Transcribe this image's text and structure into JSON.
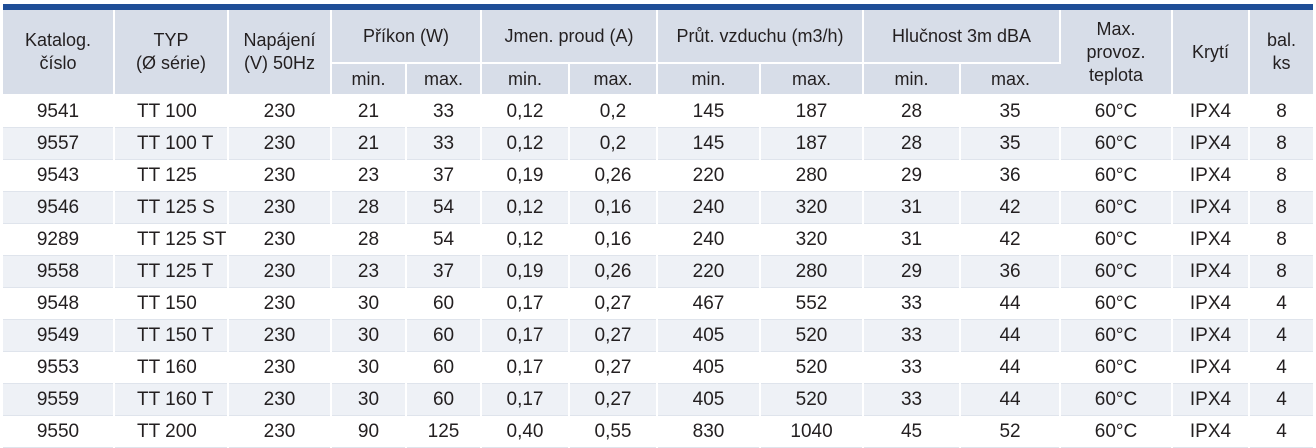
{
  "header": {
    "katalog": "Katalog. číslo",
    "katalog_l1": "Katalog.",
    "katalog_l2": "číslo",
    "typ_l1": "TYP",
    "typ_l2": "(Ø série)",
    "napajeni_l1": "Napájení",
    "napajeni_l2": "(V) 50Hz",
    "prikon": "Příkon (W)",
    "proud": "Jmen. proud (A)",
    "vzduch": "Průt. vzduchu (m3/h)",
    "hlucnost": "Hlučnost 3m dBA",
    "max_l1": "Max.",
    "max_l2": "provoz.",
    "max_l3": "teplota",
    "kryti": "Krytí",
    "bal_l1": "bal.",
    "bal_l2": "ks",
    "min": "min.",
    "max": "max."
  },
  "rows": [
    {
      "cislo": "9541",
      "typ": "TT 100",
      "napajeni": "230",
      "prikon_min": "21",
      "prikon_max": "33",
      "proud_min": "0,12",
      "proud_max": "0,2",
      "vzduch_min": "145",
      "vzduch_max": "187",
      "hluk_min": "28",
      "hluk_max": "35",
      "teplota": "60°C",
      "kryti": "IPX4",
      "bal": "8"
    },
    {
      "cislo": "9557",
      "typ": "TT 100 T",
      "napajeni": "230",
      "prikon_min": "21",
      "prikon_max": "33",
      "proud_min": "0,12",
      "proud_max": "0,2",
      "vzduch_min": "145",
      "vzduch_max": "187",
      "hluk_min": "28",
      "hluk_max": "35",
      "teplota": "60°C",
      "kryti": "IPX4",
      "bal": "8"
    },
    {
      "cislo": "9543",
      "typ": "TT 125",
      "napajeni": "230",
      "prikon_min": "23",
      "prikon_max": "37",
      "proud_min": "0,19",
      "proud_max": "0,26",
      "vzduch_min": "220",
      "vzduch_max": "280",
      "hluk_min": "29",
      "hluk_max": "36",
      "teplota": "60°C",
      "kryti": "IPX4",
      "bal": "8"
    },
    {
      "cislo": "9546",
      "typ": "TT 125 S",
      "napajeni": "230",
      "prikon_min": "28",
      "prikon_max": "54",
      "proud_min": "0,12",
      "proud_max": "0,16",
      "vzduch_min": "240",
      "vzduch_max": "320",
      "hluk_min": "31",
      "hluk_max": "42",
      "teplota": "60°C",
      "kryti": "IPX4",
      "bal": "8"
    },
    {
      "cislo": "9289",
      "typ": "TT 125 ST",
      "napajeni": "230",
      "prikon_min": "28",
      "prikon_max": "54",
      "proud_min": "0,12",
      "proud_max": "0,16",
      "vzduch_min": "240",
      "vzduch_max": "320",
      "hluk_min": "31",
      "hluk_max": "42",
      "teplota": "60°C",
      "kryti": "IPX4",
      "bal": "8"
    },
    {
      "cislo": "9558",
      "typ": "TT 125 T",
      "napajeni": "230",
      "prikon_min": "23",
      "prikon_max": "37",
      "proud_min": "0,19",
      "proud_max": "0,26",
      "vzduch_min": "220",
      "vzduch_max": "280",
      "hluk_min": "29",
      "hluk_max": "36",
      "teplota": "60°C",
      "kryti": "IPX4",
      "bal": "8"
    },
    {
      "cislo": "9548",
      "typ": "TT 150",
      "napajeni": "230",
      "prikon_min": "30",
      "prikon_max": "60",
      "proud_min": "0,17",
      "proud_max": "0,27",
      "vzduch_min": "467",
      "vzduch_max": "552",
      "hluk_min": "33",
      "hluk_max": "44",
      "teplota": "60°C",
      "kryti": "IPX4",
      "bal": "4"
    },
    {
      "cislo": "9549",
      "typ": "TT 150 T",
      "napajeni": "230",
      "prikon_min": "30",
      "prikon_max": "60",
      "proud_min": "0,17",
      "proud_max": "0,27",
      "vzduch_min": "405",
      "vzduch_max": "520",
      "hluk_min": "33",
      "hluk_max": "44",
      "teplota": "60°C",
      "kryti": "IPX4",
      "bal": "4"
    },
    {
      "cislo": "9553",
      "typ": "TT 160",
      "napajeni": "230",
      "prikon_min": "30",
      "prikon_max": "60",
      "proud_min": "0,17",
      "proud_max": "0,27",
      "vzduch_min": "405",
      "vzduch_max": "520",
      "hluk_min": "33",
      "hluk_max": "44",
      "teplota": "60°C",
      "kryti": "IPX4",
      "bal": "4"
    },
    {
      "cislo": "9559",
      "typ": "TT 160 T",
      "napajeni": "230",
      "prikon_min": "30",
      "prikon_max": "60",
      "proud_min": "0,17",
      "proud_max": "0,27",
      "vzduch_min": "405",
      "vzduch_max": "520",
      "hluk_min": "33",
      "hluk_max": "44",
      "teplota": "60°C",
      "kryti": "IPX4",
      "bal": "4"
    },
    {
      "cislo": "9550",
      "typ": "TT 200",
      "napajeni": "230",
      "prikon_min": "90",
      "prikon_max": "125",
      "proud_min": "0,40",
      "proud_max": "0,55",
      "vzduch_min": "830",
      "vzduch_max": "1040",
      "hluk_min": "45",
      "hluk_max": "52",
      "teplota": "60°C",
      "kryti": "IPX4",
      "bal": "4"
    }
  ],
  "colors": {
    "accent_bar": "#1f4e97",
    "header_bg": "#d7dde8",
    "row_alt_bg": "#eef1f6",
    "text": "#231f20"
  }
}
